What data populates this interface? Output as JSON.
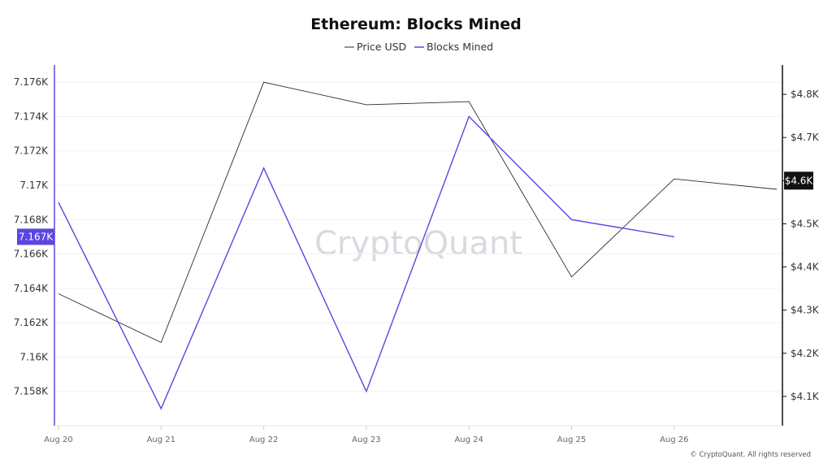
{
  "chart_data": {
    "type": "line",
    "title": "Ethereum: Blocks Mined",
    "categories": [
      "Aug 20",
      "Aug 21",
      "Aug 22",
      "Aug 23",
      "Aug 24",
      "Aug 25",
      "Aug 26",
      ""
    ],
    "series": [
      {
        "name": "Price USD",
        "axis": "right",
        "color": "#2b2b2b",
        "values": [
          4338,
          4225,
          4828,
          4776,
          4783,
          4377,
          4604,
          4580
        ]
      },
      {
        "name": "Blocks Mined",
        "axis": "left",
        "color": "#5b46e0",
        "values": [
          7169,
          7157,
          7171,
          7158,
          7174,
          7168,
          7167,
          null
        ]
      }
    ],
    "left_axis": {
      "ticks": [
        7158,
        7160,
        7162,
        7164,
        7166,
        7168,
        7170,
        7172,
        7174,
        7176
      ],
      "tick_labels": [
        "7.158K",
        "7.16K",
        "7.162K",
        "7.164K",
        "7.166K",
        "7.168K",
        "7.17K",
        "7.172K",
        "7.174K",
        "7.176K"
      ],
      "ylim": [
        7156,
        7177
      ],
      "current_label": "7.167K",
      "current_value": 7167
    },
    "right_axis": {
      "ticks": [
        4100,
        4200,
        4300,
        4400,
        4500,
        4600,
        4700,
        4800
      ],
      "tick_labels": [
        "$4.1K",
        "$4.2K",
        "$4.3K",
        "$4.4K",
        "$4.5K",
        "",
        "$4.7K",
        "$4.8K"
      ],
      "ylim": [
        4032,
        4868
      ],
      "current_label": "$4.6K",
      "current_value": 4600
    },
    "legend": {
      "placement": "top-center"
    },
    "grid": true,
    "watermark": "CryptoQuant",
    "credit": "© CryptoQuant. All rights reserved"
  }
}
